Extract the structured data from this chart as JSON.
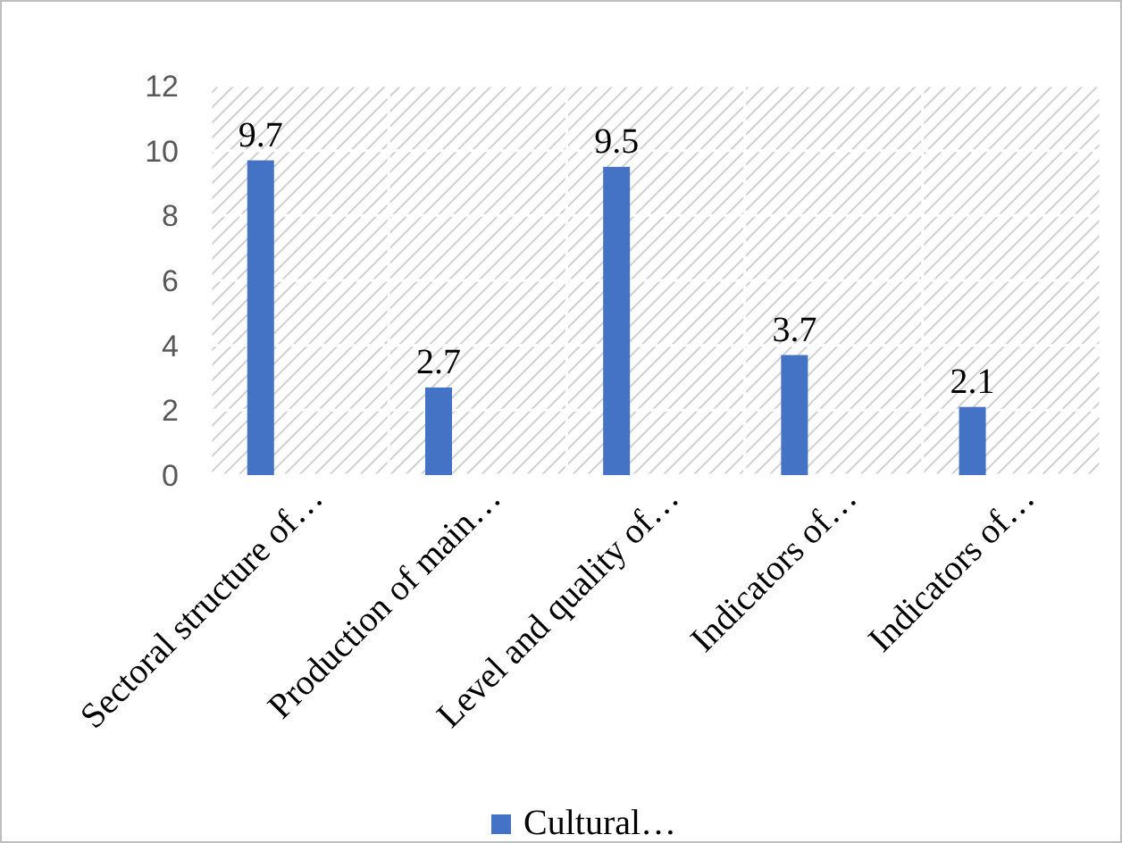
{
  "chart_data": {
    "type": "bar",
    "categories": [
      "Sectoral structure of…",
      "Production of main…",
      "Level and quality of…",
      "Indicators of…",
      "Indicators of…"
    ],
    "series": [
      {
        "name": "Cultural…",
        "color": "#4472c4",
        "values": [
          9.7,
          2.7,
          9.5,
          3.7,
          2.1
        ]
      }
    ],
    "ylim": [
      0,
      12
    ],
    "yticks": [
      0,
      2,
      4,
      6,
      8,
      10,
      12
    ],
    "grid": true,
    "legend": "bottom",
    "data_labels": true
  }
}
